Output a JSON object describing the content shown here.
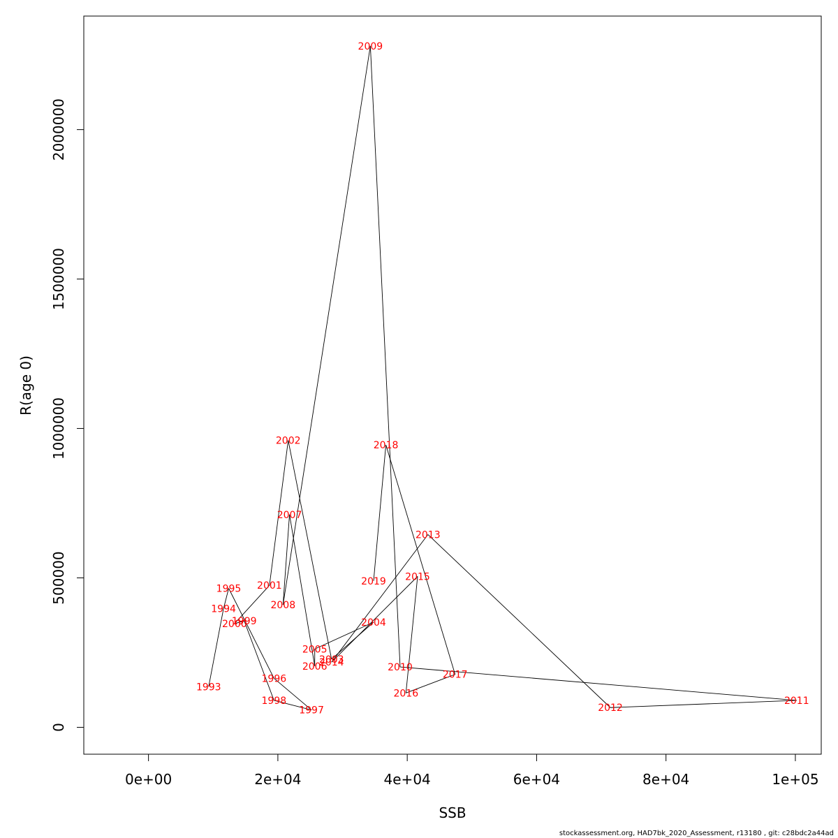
{
  "chart_data": {
    "type": "line",
    "xlabel": "SSB",
    "ylabel": "R(age 0)",
    "xlim": [
      -10000,
      104000
    ],
    "ylim": [
      -90000,
      2380000
    ],
    "x_ticks": [
      0,
      20000,
      40000,
      60000,
      80000,
      100000
    ],
    "x_tick_labels": [
      "0e+00",
      "2e+04",
      "4e+04",
      "6e+04",
      "8e+04",
      "1e+05"
    ],
    "y_ticks": [
      0,
      500000,
      1000000,
      1500000,
      2000000
    ],
    "y_tick_labels": [
      "0",
      "500000",
      "1000000",
      "1500000",
      "2000000"
    ],
    "grid": false,
    "line_color": "#000000",
    "label_color": "#ff0000",
    "points": [
      {
        "year": "1993",
        "x": 9300,
        "y": 136000
      },
      {
        "year": "1994",
        "x": 11600,
        "y": 397000
      },
      {
        "year": "1995",
        "x": 12400,
        "y": 465000
      },
      {
        "year": "1996",
        "x": 19400,
        "y": 164000
      },
      {
        "year": "1997",
        "x": 25200,
        "y": 58000
      },
      {
        "year": "1998",
        "x": 19400,
        "y": 90000
      },
      {
        "year": "1999",
        "x": 14800,
        "y": 356000
      },
      {
        "year": "2000",
        "x": 13300,
        "y": 347000
      },
      {
        "year": "2001",
        "x": 18700,
        "y": 475000
      },
      {
        "year": "2002",
        "x": 21600,
        "y": 960000
      },
      {
        "year": "2003",
        "x": 28300,
        "y": 228000
      },
      {
        "year": "2004",
        "x": 34800,
        "y": 352000
      },
      {
        "year": "2005",
        "x": 25700,
        "y": 262000
      },
      {
        "year": "2006",
        "x": 25700,
        "y": 205000
      },
      {
        "year": "2007",
        "x": 21800,
        "y": 712000
      },
      {
        "year": "2008",
        "x": 20800,
        "y": 410000
      },
      {
        "year": "2009",
        "x": 34300,
        "y": 2280000
      },
      {
        "year": "2010",
        "x": 38900,
        "y": 202000
      },
      {
        "year": "2011",
        "x": 100200,
        "y": 90000
      },
      {
        "year": "2012",
        "x": 71400,
        "y": 66000
      },
      {
        "year": "2013",
        "x": 43200,
        "y": 645000
      },
      {
        "year": "2014",
        "x": 28300,
        "y": 218000
      },
      {
        "year": "2015",
        "x": 41600,
        "y": 505000
      },
      {
        "year": "2016",
        "x": 39800,
        "y": 115000
      },
      {
        "year": "2017",
        "x": 47400,
        "y": 177000
      },
      {
        "year": "2018",
        "x": 36700,
        "y": 945000
      },
      {
        "year": "2019",
        "x": 34800,
        "y": 490000
      }
    ]
  },
  "footer_text": "stockassessment.org, HAD7bk_2020_Assessment, r13180 , git: c28bdc2a44ad"
}
